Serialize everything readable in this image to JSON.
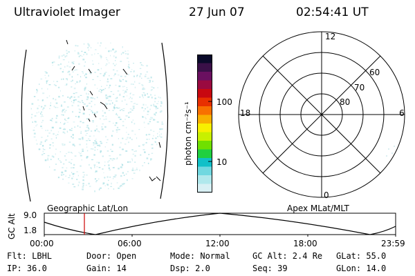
{
  "header": {
    "instrument": "Ultraviolet Imager",
    "date": "27 Jun 07",
    "time": "02:54:41 UT"
  },
  "colorbar": {
    "unit_label": "photon cm⁻²s⁻¹",
    "tick_labels": [
      "100",
      "10"
    ],
    "colors": [
      "#0a0a2a",
      "#3a1048",
      "#6a1060",
      "#9a0a40",
      "#c80810",
      "#e83000",
      "#f87000",
      "#f8b000",
      "#f8f000",
      "#c8f000",
      "#70e000",
      "#20d040",
      "#10c0c8",
      "#70d8e0",
      "#b0e8ec",
      "#d8f0f4"
    ]
  },
  "polar_plot": {
    "mlt_labels": {
      "top": "12",
      "left": "18",
      "right": "6",
      "bottom": "0"
    },
    "lat_labels": [
      "60",
      "70",
      "80"
    ]
  },
  "timeline": {
    "left_title": "Geographic Lat/Lon",
    "right_title": "Apex MLat/MLT",
    "axis_label": "GC Alt",
    "y_ticks": [
      "9.0",
      "1.8"
    ],
    "x_ticks": [
      "00:00",
      "06:00",
      "12:00",
      "18:00",
      "23:59"
    ],
    "marker_color": "#cc0000"
  },
  "info": {
    "flt": "Flt: LBHL",
    "door": "Door: Open",
    "mode": "Mode: Normal",
    "gcalt": "GC Alt: 2.4 Re",
    "glat": "GLat:  55.0",
    "ip": "IP: 36.0",
    "gain": "Gain: 14",
    "dsp": "Dsp:    2.0",
    "seq": "Seq: 39",
    "glon": "GLon:  14.0"
  },
  "image_tint": "#a8dfe4"
}
